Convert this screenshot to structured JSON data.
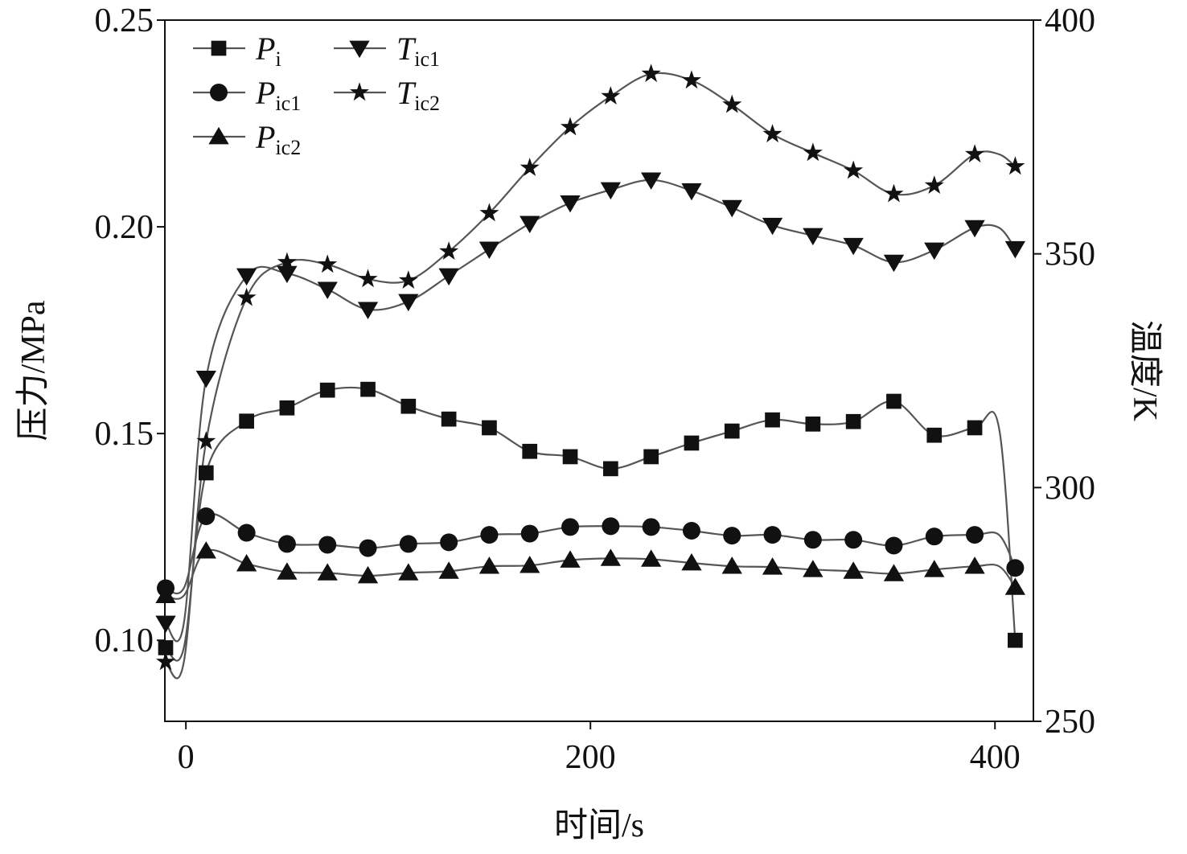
{
  "chart_data": {
    "type": "line",
    "xlabel": "时间/s",
    "ylabel_left": "压力/MPa",
    "ylabel_right": "温度/K",
    "xlim": [
      -10.4,
      419
    ],
    "ylim_left": [
      0.0804,
      0.25
    ],
    "ylim_right": [
      250,
      400
    ],
    "x_ticks": [
      0,
      200,
      400
    ],
    "x_tick_labels": [
      "0",
      "200",
      "400"
    ],
    "y_left_ticks": [
      0.1,
      0.15,
      0.2,
      0.25
    ],
    "y_left_tick_labels": [
      "0.10",
      "0.15",
      "0.20",
      "0.25"
    ],
    "y_right_ticks": [
      250,
      300,
      350,
      400
    ],
    "y_right_tick_labels": [
      "250",
      "300",
      "350",
      "400"
    ],
    "grid": false,
    "legend_position": "top-left",
    "x": [
      -10,
      10,
      30,
      50,
      70,
      90,
      110,
      130,
      150,
      170,
      190,
      210,
      230,
      250,
      270,
      290,
      310,
      330,
      350,
      370,
      390,
      410
    ],
    "series": [
      {
        "name": "Pi",
        "symbol": "P",
        "subscript": "i",
        "axis": "left",
        "marker": "square",
        "values": [
          0.0982,
          0.1405,
          0.153,
          0.1562,
          0.1605,
          0.1607,
          0.1566,
          0.1535,
          0.1514,
          0.1457,
          0.1444,
          0.1415,
          0.1444,
          0.1477,
          0.1506,
          0.1533,
          0.1523,
          0.1529,
          0.1578,
          0.1496,
          0.1514,
          0.1
        ]
      },
      {
        "name": "Pic1",
        "symbol": "P",
        "subscript": "ic1",
        "axis": "left",
        "marker": "circle",
        "values": [
          0.1126,
          0.13,
          0.126,
          0.1233,
          0.1231,
          0.1223,
          0.1233,
          0.1237,
          0.1255,
          0.1258,
          0.1274,
          0.1276,
          0.1274,
          0.1265,
          0.1253,
          0.1255,
          0.1243,
          0.1243,
          0.1229,
          0.1251,
          0.1255,
          0.1175
        ]
      },
      {
        "name": "Pic2",
        "symbol": "P",
        "subscript": "ic2",
        "axis": "left",
        "marker": "triangle-up",
        "values": [
          0.1108,
          0.1216,
          0.1185,
          0.1165,
          0.1163,
          0.1156,
          0.1163,
          0.1167,
          0.1179,
          0.1181,
          0.1194,
          0.1198,
          0.1196,
          0.1187,
          0.1179,
          0.1177,
          0.1171,
          0.1167,
          0.1161,
          0.1171,
          0.1179,
          0.1128
        ]
      },
      {
        "name": "Tic1",
        "symbol": "T",
        "subscript": "ic1",
        "axis": "right",
        "marker": "triangle-down",
        "values": [
          271.0,
          323.4,
          345.3,
          345.8,
          342.4,
          338.1,
          339.8,
          345.3,
          351.0,
          356.5,
          360.9,
          363.7,
          365.8,
          363.5,
          359.9,
          356.1,
          353.9,
          351.8,
          348.2,
          350.8,
          355.6,
          351.1
        ]
      },
      {
        "name": "Tic2",
        "symbol": "T",
        "subscript": "ic2",
        "axis": "right",
        "marker": "star",
        "values": [
          262.7,
          309.9,
          340.6,
          348.2,
          347.7,
          344.6,
          344.3,
          350.5,
          358.7,
          368.4,
          377.1,
          383.7,
          388.5,
          387.1,
          381.9,
          375.6,
          371.6,
          367.8,
          362.8,
          364.6,
          371.3,
          368.7
        ]
      }
    ],
    "colors": {
      "line": "#555555",
      "marker": "#111111",
      "axis": "#111111"
    }
  }
}
